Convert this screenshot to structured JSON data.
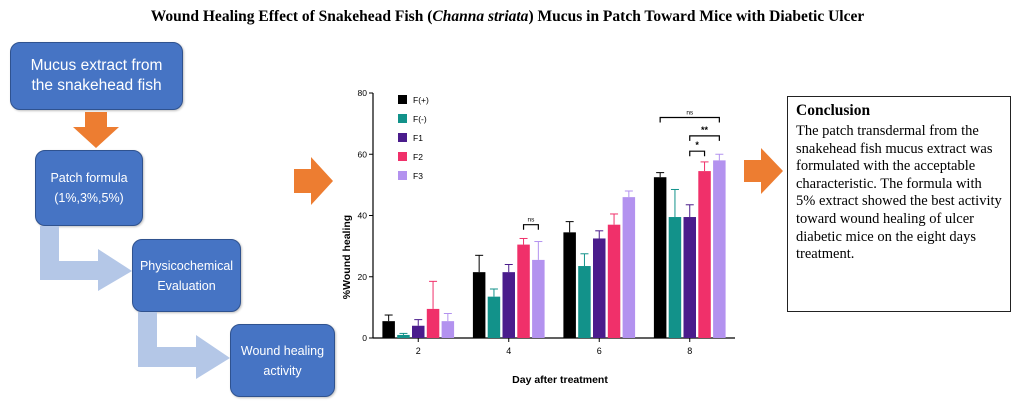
{
  "title": {
    "prefix": "Wound Healing Effect of Snakehead Fish (",
    "italic": "Channa striata",
    "suffix": ") Mucus in Patch Toward Mice with Diabetic Ulcer"
  },
  "flow": {
    "box1": [
      "Mucus extract from",
      "the snakehead fish"
    ],
    "box2": [
      "Patch formula",
      "(1%,3%,5%)"
    ],
    "box3": [
      "Physicochemical",
      "Evaluation"
    ],
    "box4": [
      "Wound healing",
      "activity"
    ]
  },
  "colors": {
    "box_fill": "#4674c4",
    "orange_arrow": "#ed7d31",
    "light_arrow": "#b4c7e7"
  },
  "chart_data": {
    "type": "bar",
    "xlabel": "Day after treatment",
    "ylabel": "%Wound healing",
    "ylim": [
      0,
      80
    ],
    "yticks": [
      0,
      20,
      40,
      60,
      80
    ],
    "categories": [
      "2",
      "4",
      "6",
      "8"
    ],
    "legend_position": "top-left",
    "series": [
      {
        "name": "F(+)",
        "color": "#000000",
        "values": [
          5.5,
          21.5,
          34.5,
          52.5
        ],
        "errors": [
          2,
          5.5,
          3.5,
          1.5
        ]
      },
      {
        "name": "F(-)",
        "color": "#12928a",
        "values": [
          1,
          13.5,
          23.5,
          39.5
        ],
        "errors": [
          0.5,
          2.5,
          4,
          9
        ]
      },
      {
        "name": "F1",
        "color": "#4a1c8c",
        "values": [
          4,
          21.5,
          32.5,
          39.5
        ],
        "errors": [
          2,
          2.5,
          2.5,
          4
        ]
      },
      {
        "name": "F2",
        "color": "#f0306a",
        "values": [
          9.5,
          30.5,
          37,
          54.5
        ],
        "errors": [
          9,
          2,
          3.5,
          3
        ]
      },
      {
        "name": "F3",
        "color": "#b392ef",
        "values": [
          5.5,
          25.5,
          46,
          58
        ],
        "errors": [
          2.5,
          6,
          2,
          2
        ]
      }
    ],
    "significance": [
      {
        "category": "4",
        "from": "F2",
        "to": "F3",
        "label": "ns"
      },
      {
        "category": "8",
        "from": "F(+)",
        "to": "F3",
        "label": "ns"
      },
      {
        "category": "8",
        "from": "F1",
        "to": "F3",
        "label": "**"
      },
      {
        "category": "8",
        "from": "F1",
        "to": "F2",
        "label": "*"
      }
    ]
  },
  "conclusion": {
    "heading": "Conclusion",
    "text": "The patch transdermal from the snakehead fish mucus extract was formulated with the acceptable characteristic. The formula with 5% extract showed the best activity toward wound healing of ulcer diabetic mice on the eight days treatment."
  }
}
